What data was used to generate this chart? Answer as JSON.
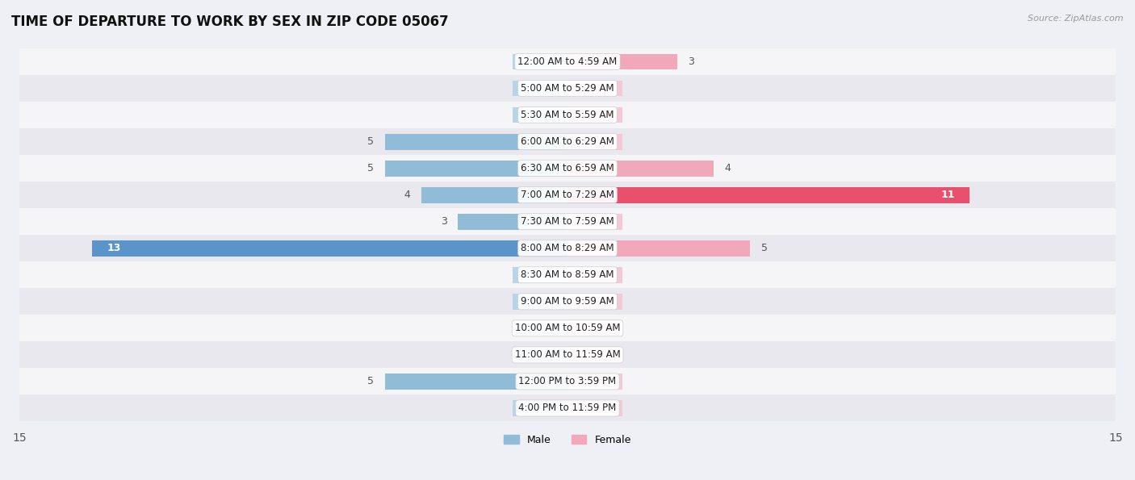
{
  "title": "TIME OF DEPARTURE TO WORK BY SEX IN ZIP CODE 05067",
  "source": "Source: ZipAtlas.com",
  "categories": [
    "12:00 AM to 4:59 AM",
    "5:00 AM to 5:29 AM",
    "5:30 AM to 5:59 AM",
    "6:00 AM to 6:29 AM",
    "6:30 AM to 6:59 AM",
    "7:00 AM to 7:29 AM",
    "7:30 AM to 7:59 AM",
    "8:00 AM to 8:29 AM",
    "8:30 AM to 8:59 AM",
    "9:00 AM to 9:59 AM",
    "10:00 AM to 10:59 AM",
    "11:00 AM to 11:59 AM",
    "12:00 PM to 3:59 PM",
    "4:00 PM to 11:59 PM"
  ],
  "male": [
    0,
    0,
    0,
    5,
    5,
    4,
    3,
    13,
    0,
    0,
    0,
    0,
    5,
    0
  ],
  "female": [
    3,
    0,
    0,
    0,
    4,
    11,
    0,
    5,
    0,
    0,
    0,
    0,
    0,
    0
  ],
  "male_color": "#90bcd8",
  "female_color": "#f2a8bb",
  "male_highlight_color": "#5b94c8",
  "female_highlight_color": "#e8506e",
  "male_stub_color": "#b8d4e8",
  "female_stub_color": "#f5c8d5",
  "bg_color": "#eff0f5",
  "row_bg_even": "#f5f5f8",
  "row_bg_odd": "#e8e8ee",
  "xlim": 15,
  "stub_size": 1.5,
  "bar_height": 0.6,
  "label_fontsize": 9,
  "title_fontsize": 12,
  "axis_label_fontsize": 10,
  "category_fontsize": 8.5,
  "male_highlight_thresh": 10,
  "female_highlight_thresh": 10
}
